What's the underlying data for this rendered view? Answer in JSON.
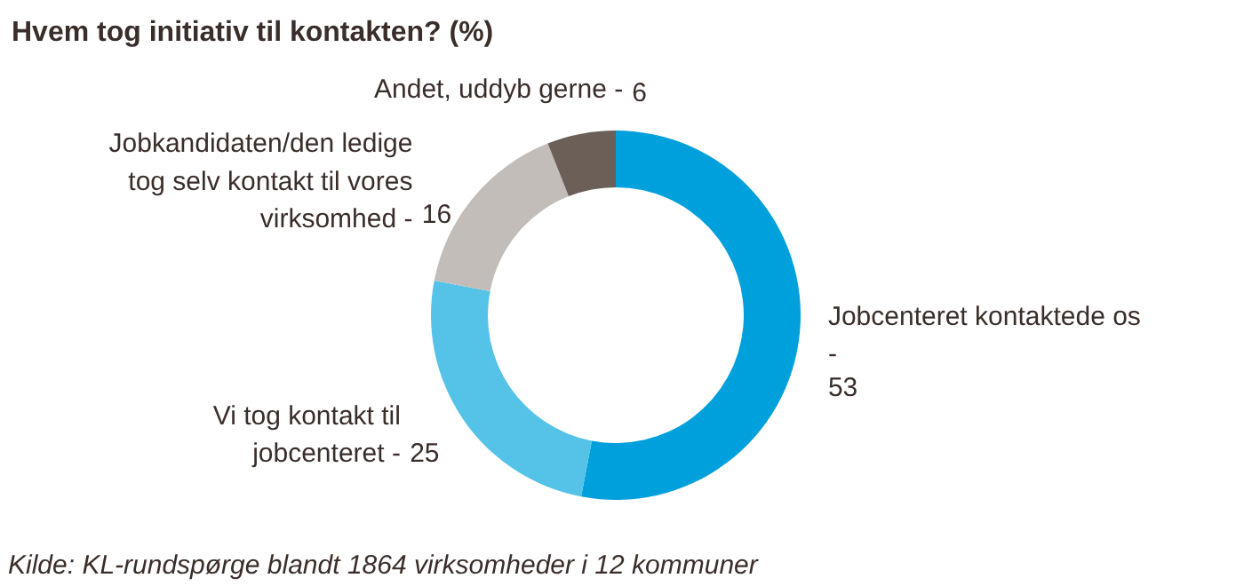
{
  "chart_data": {
    "type": "donut",
    "title": "Hvem tog initiativ til kontakten? (%)",
    "categories": [
      "Jobcenteret kontaktede os -",
      "Vi tog kontakt til jobcenteret -",
      "Jobkandidaten/den ledige tog selv kontakt til vores virksomhed -",
      "Andet, uddyb gerne -"
    ],
    "values": [
      53,
      25,
      16,
      6
    ],
    "colors": [
      "#00a0dc",
      "#55c2e8",
      "#c2bdb8",
      "#6b5f58"
    ],
    "data_labels": true,
    "annotations": [
      "Kilde: KL-rundspørge blandt 1864 virksomheder i 12 kommuner"
    ]
  }
}
